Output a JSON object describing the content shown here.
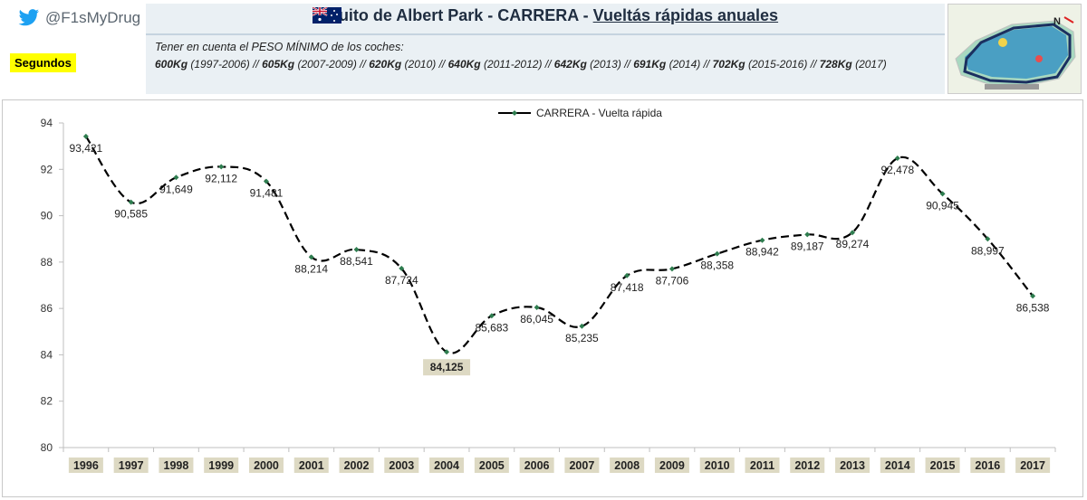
{
  "header": {
    "twitter_handle": "@F1sMyDrug",
    "units_badge": "Segundos",
    "title_main": "uito de Albert Park - CARRERA - ",
    "title_underlined": "Vueltás rápidas anuales",
    "note": "Tener en cuenta el PESO MÍNIMO de los coches:",
    "weights": [
      {
        "weight": "600Kg",
        "years": "(1997-2006)"
      },
      {
        "weight": "605Kg",
        "years": "(2007-2009)"
      },
      {
        "weight": "620Kg",
        "years": "(2010)"
      },
      {
        "weight": "640Kg",
        "years": "(2011-2012)"
      },
      {
        "weight": "642Kg",
        "years": "(2013)"
      },
      {
        "weight": "691Kg",
        "years": "(2014)"
      },
      {
        "weight": "702Kg",
        "years": "(2015-2016)"
      },
      {
        "weight": "728Kg",
        "years": "(2017)"
      }
    ],
    "separator": "//",
    "map_north": "N"
  },
  "colors": {
    "line": "#000000",
    "marker": "#2e7d4f",
    "year_label_bg": "#ddd9c3",
    "min_label_bg": "#ddd9c3",
    "units_bg": "#ffff00",
    "header_bg": "#eaf0f4",
    "twitter": "#1da1f2"
  },
  "chart_data": {
    "type": "line",
    "categories": [
      "1996",
      "1997",
      "1998",
      "1999",
      "2000",
      "2001",
      "2002",
      "2003",
      "2004",
      "2005",
      "2006",
      "2007",
      "2008",
      "2009",
      "2010",
      "2011",
      "2012",
      "2013",
      "2014",
      "2015",
      "2016",
      "2017"
    ],
    "series": [
      {
        "name": "CARRERA - Vuelta rápida",
        "values": [
          93.421,
          90.585,
          91.649,
          92.112,
          91.481,
          88.214,
          88.541,
          87.724,
          84.125,
          85.683,
          86.045,
          85.235,
          87.418,
          87.706,
          88.358,
          88.942,
          89.187,
          89.274,
          92.478,
          90.945,
          88.997,
          86.538
        ],
        "data_labels": [
          "93,421",
          "90,585",
          "91,649",
          "92,112",
          "91,481",
          "88,214",
          "88,541",
          "87,724",
          "84,125",
          "85,683",
          "86,045",
          "85,235",
          "87,418",
          "87,706",
          "88,358",
          "88,942",
          "89,187",
          "89,274",
          "92,478",
          "90,945",
          "88,997",
          "86,538"
        ]
      }
    ],
    "highlight_min_label": "84,125",
    "ylim": [
      80,
      94
    ],
    "yticks": [
      80,
      82,
      84,
      86,
      88,
      90,
      92,
      94
    ],
    "line_style": "dashed-smooth",
    "grid": false,
    "legend_position": "top-center"
  }
}
